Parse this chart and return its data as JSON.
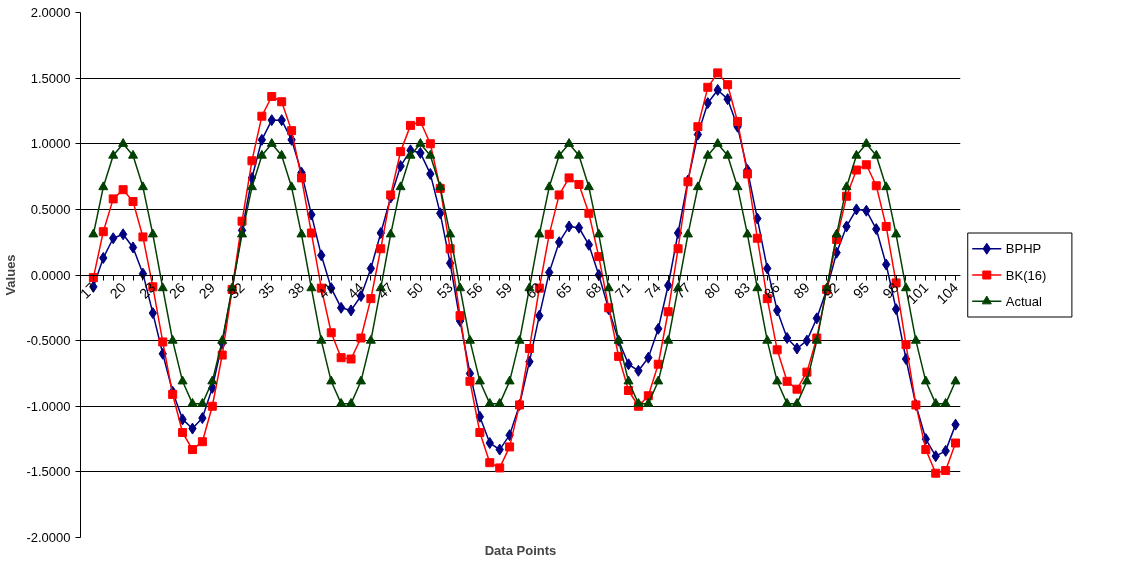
{
  "chart_data": {
    "type": "line",
    "xlabel": "Data Points",
    "ylabel": "Values",
    "categories": [
      "17",
      null,
      null,
      "20",
      null,
      null,
      "23",
      null,
      null,
      "26",
      null,
      null,
      "29",
      null,
      null,
      "32",
      null,
      null,
      "35",
      null,
      null,
      "38",
      null,
      null,
      "41",
      null,
      null,
      "44",
      null,
      null,
      "47",
      null,
      null,
      "50",
      null,
      null,
      "53",
      null,
      null,
      "56",
      null,
      null,
      "59",
      null,
      null,
      "62",
      null,
      null,
      "65",
      null,
      null,
      "68",
      null,
      null,
      "71",
      null,
      null,
      "74",
      null,
      null,
      "77",
      null,
      null,
      "80",
      null,
      null,
      "83",
      null,
      null,
      "86",
      null,
      null,
      "89",
      null,
      null,
      "92",
      null,
      null,
      "95",
      null,
      null,
      "98",
      null,
      null,
      "101",
      null,
      null,
      "104"
    ],
    "series": [
      {
        "name": "BPHP",
        "color": "#000080",
        "marker": "diamond",
        "values": [
          -0.09,
          0.13,
          0.28,
          0.31,
          0.21,
          0.01,
          -0.29,
          -0.6,
          -0.89,
          -1.1,
          -1.17,
          -1.09,
          -0.86,
          -0.52,
          -0.11,
          0.34,
          0.74,
          1.03,
          1.18,
          1.18,
          1.03,
          0.78,
          0.46,
          0.15,
          -0.1,
          -0.25,
          -0.27,
          -0.16,
          0.05,
          0.32,
          0.59,
          0.83,
          0.95,
          0.93,
          0.77,
          0.47,
          0.09,
          -0.35,
          -0.75,
          -1.08,
          -1.28,
          -1.33,
          -1.22,
          -0.99,
          -0.66,
          -0.31,
          0.02,
          0.25,
          0.37,
          0.36,
          0.23,
          0.0,
          -0.26,
          -0.5,
          -0.68,
          -0.73,
          -0.63,
          -0.41,
          -0.08,
          0.32,
          0.72,
          1.07,
          1.31,
          1.41,
          1.34,
          1.13,
          0.8,
          0.43,
          0.05,
          -0.27,
          -0.48,
          -0.56,
          -0.5,
          -0.33,
          -0.11,
          0.17,
          0.37,
          0.5,
          0.49,
          0.35,
          0.08,
          -0.26,
          -0.64,
          -0.99,
          -1.25,
          -1.38,
          -1.34,
          -1.14
        ]
      },
      {
        "name": "BK(16)",
        "color": "#ff0000",
        "marker": "square",
        "values": [
          -0.02,
          0.33,
          0.58,
          0.65,
          0.56,
          0.29,
          -0.09,
          -0.51,
          -0.91,
          -1.2,
          -1.33,
          -1.27,
          -1.0,
          -0.61,
          -0.11,
          0.41,
          0.87,
          1.21,
          1.36,
          1.32,
          1.1,
          0.74,
          0.32,
          -0.1,
          -0.44,
          -0.63,
          -0.64,
          -0.48,
          -0.18,
          0.2,
          0.61,
          0.94,
          1.14,
          1.17,
          1.0,
          0.66,
          0.2,
          -0.31,
          -0.81,
          -1.2,
          -1.43,
          -1.47,
          -1.31,
          -0.99,
          -0.56,
          -0.1,
          0.31,
          0.61,
          0.74,
          0.69,
          0.47,
          0.14,
          -0.25,
          -0.62,
          -0.88,
          -1.0,
          -0.92,
          -0.68,
          -0.28,
          0.2,
          0.71,
          1.13,
          1.43,
          1.54,
          1.45,
          1.17,
          0.77,
          0.28,
          -0.18,
          -0.57,
          -0.81,
          -0.87,
          -0.74,
          -0.48,
          -0.11,
          0.27,
          0.6,
          0.8,
          0.84,
          0.68,
          0.37,
          -0.06,
          -0.53,
          -0.99,
          -1.33,
          -1.51,
          -1.49,
          -1.28
        ]
      },
      {
        "name": "Actual",
        "color": "#004000",
        "marker": "triangle",
        "values": [
          0.31,
          0.67,
          0.91,
          1.0,
          0.91,
          0.67,
          0.31,
          -0.1,
          -0.5,
          -0.81,
          -0.98,
          -0.98,
          -0.81,
          -0.5,
          -0.1,
          0.31,
          0.67,
          0.91,
          1.0,
          0.91,
          0.67,
          0.31,
          -0.1,
          -0.5,
          -0.81,
          -0.98,
          -0.98,
          -0.81,
          -0.5,
          -0.1,
          0.31,
          0.67,
          0.91,
          1.0,
          0.91,
          0.67,
          0.31,
          -0.1,
          -0.5,
          -0.81,
          -0.98,
          -0.98,
          -0.81,
          -0.5,
          -0.1,
          0.31,
          0.67,
          0.91,
          1.0,
          0.91,
          0.67,
          0.31,
          -0.1,
          -0.5,
          -0.81,
          -0.98,
          -0.98,
          -0.81,
          -0.5,
          -0.1,
          0.31,
          0.67,
          0.91,
          1.0,
          0.91,
          0.67,
          0.31,
          -0.1,
          -0.5,
          -0.81,
          -0.98,
          -0.98,
          -0.81,
          -0.5,
          -0.1,
          0.31,
          0.67,
          0.91,
          1.0,
          0.91,
          0.67,
          0.31,
          -0.1,
          -0.5,
          -0.81,
          -0.98,
          -0.98,
          -0.81
        ]
      }
    ],
    "ylim": [
      -2,
      2
    ],
    "yticks": [
      {
        "value": -2,
        "label": "-2.0000"
      },
      {
        "value": -1.5,
        "label": "-1.5000"
      },
      {
        "value": -1,
        "label": "-1.0000"
      },
      {
        "value": -0.5,
        "label": "-0.5000"
      },
      {
        "value": 0,
        "label": "0.0000"
      },
      {
        "value": 0.5,
        "label": "0.5000"
      },
      {
        "value": 1,
        "label": "1.0000"
      },
      {
        "value": 1.5,
        "label": "1.5000"
      },
      {
        "value": 2,
        "label": "2.0000"
      }
    ],
    "grid": "y",
    "legend": "right",
    "line_style": "solid"
  }
}
